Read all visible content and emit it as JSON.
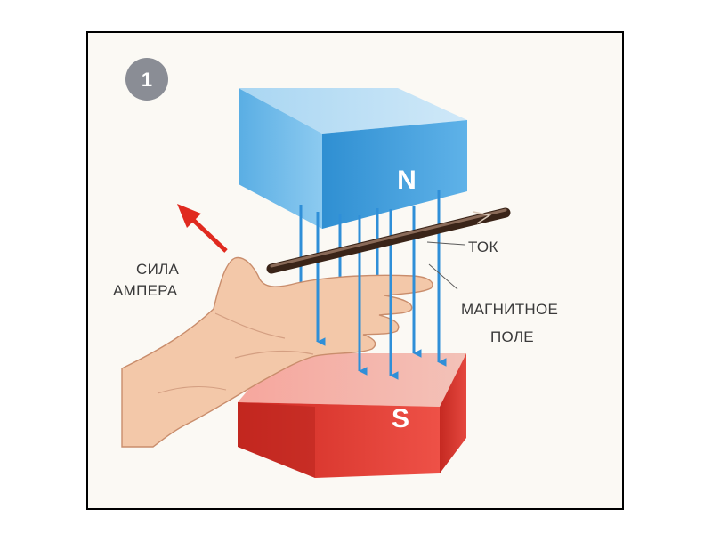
{
  "figure_number": "1",
  "magnets": {
    "north": {
      "pole": "N",
      "color": "#3a9fdd"
    },
    "south": {
      "pole": "S",
      "color": "#e0342c"
    }
  },
  "labels": {
    "force_line1": "СИЛА",
    "force_line2": "АМПЕРА",
    "current": "ТОК",
    "field_line1": "МАГНИТНОЕ",
    "field_line2": "ПОЛЕ"
  },
  "colors": {
    "field_arrows": "#2f8fd8",
    "force_arrow": "#e02a1f",
    "hand": "#f2c3a3",
    "conductor": "#5a3a2a"
  }
}
